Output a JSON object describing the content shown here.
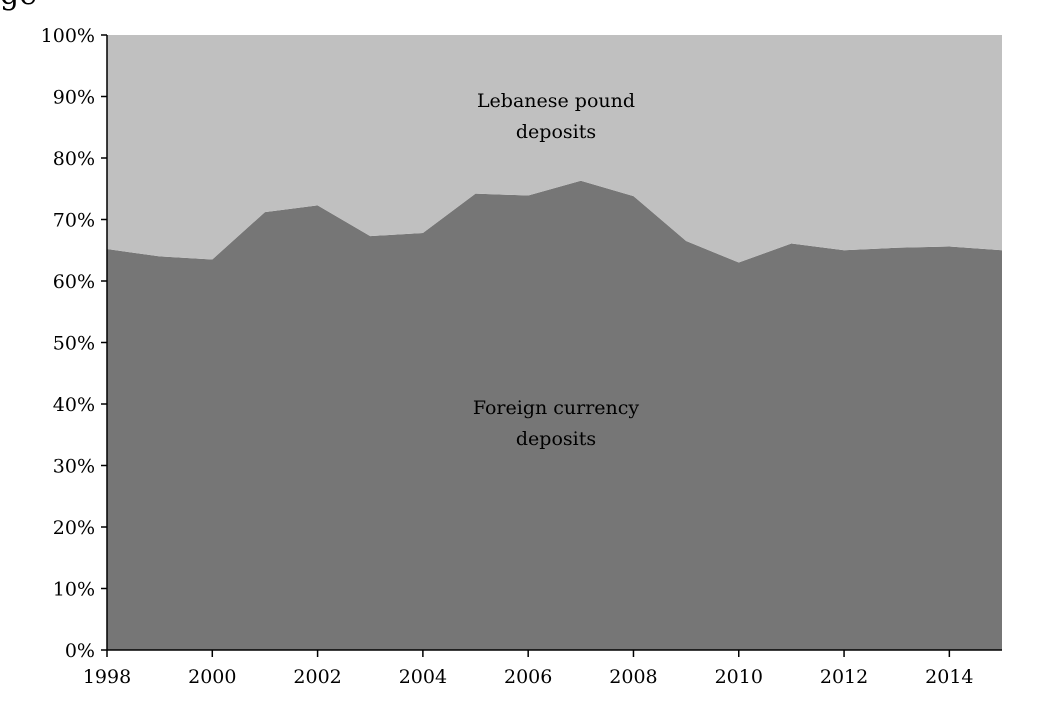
{
  "chart_data": {
    "type": "area",
    "stacked": true,
    "percent": true,
    "x": [
      1998,
      1999,
      2000,
      2001,
      2002,
      2003,
      2004,
      2005,
      2006,
      2007,
      2008,
      2009,
      2010,
      2011,
      2012,
      2013,
      2014,
      2015
    ],
    "series": [
      {
        "name": "Foreign currency deposits",
        "color": "#767676",
        "values": [
          65.2,
          64.0,
          63.5,
          71.2,
          72.3,
          67.3,
          67.8,
          74.2,
          73.9,
          76.3,
          73.8,
          66.5,
          63.0,
          66.1,
          65.0,
          65.4,
          65.6,
          65.0
        ]
      },
      {
        "name": "Lebanese pound deposits",
        "color": "#c0c0c0",
        "values": [
          34.8,
          36.0,
          36.5,
          28.8,
          27.7,
          32.7,
          32.2,
          25.8,
          26.1,
          23.7,
          26.2,
          33.5,
          37.0,
          33.9,
          35.0,
          34.6,
          34.4,
          35.0
        ]
      }
    ],
    "annotations": {
      "foreign": [
        "Foreign currency",
        "deposits"
      ],
      "lebanese": [
        "Lebanese pound",
        "deposits"
      ]
    },
    "x_ticks": [
      1998,
      2000,
      2002,
      2004,
      2006,
      2008,
      2010,
      2012,
      2014
    ],
    "x_tick_labels": [
      "1998",
      "2000",
      "2002",
      "2004",
      "2006",
      "2008",
      "2010",
      "2012",
      "2014"
    ],
    "y_ticks": [
      0,
      10,
      20,
      30,
      40,
      50,
      60,
      70,
      80,
      90,
      100
    ],
    "y_tick_labels": [
      "0%",
      "10%",
      "20%",
      "30%",
      "40%",
      "50%",
      "60%",
      "70%",
      "80%",
      "90%",
      "100%"
    ],
    "xlim": [
      1998,
      2015
    ],
    "ylim": [
      0,
      100
    ],
    "title": "",
    "xlabel": "",
    "ylabel": "",
    "grid": false,
    "legend": "none"
  }
}
